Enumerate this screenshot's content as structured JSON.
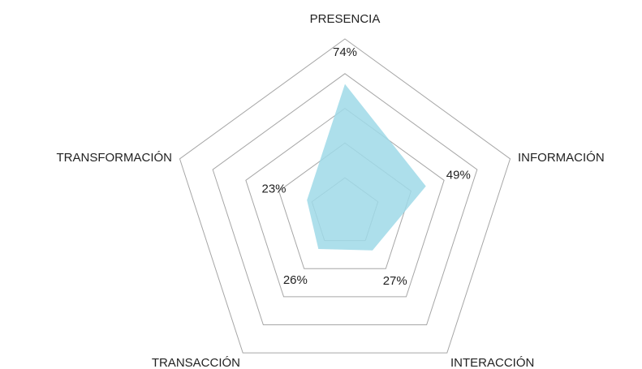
{
  "chart_data": {
    "type": "radar",
    "categories": [
      "PRESENCIA",
      "INFORMACIÓN",
      "INTERACCIÓN",
      "TRANSACCIÓN",
      "TRANSFORMACIÓN"
    ],
    "values": [
      74,
      49,
      27,
      26,
      23
    ],
    "value_labels": [
      "74%",
      "49%",
      "27%",
      "26%",
      "23%"
    ],
    "color": "#9fd9e8",
    "rlim": [
      0,
      100
    ],
    "rticks": [
      20,
      40,
      60,
      80,
      100
    ],
    "grid": true
  }
}
